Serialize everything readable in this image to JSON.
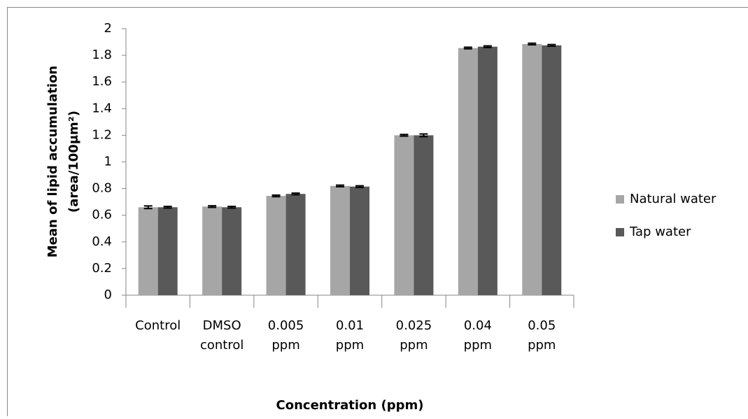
{
  "chart_data": {
    "type": "bar",
    "x_label": "Concentration (ppm)",
    "y_label": [
      "Mean of lipid accumulation",
      "(area/100μm²)"
    ],
    "categories": [
      [
        "Control"
      ],
      [
        "DMSO",
        "control"
      ],
      [
        "0.005",
        "ppm"
      ],
      [
        "0.01",
        "ppm"
      ],
      [
        "0.025",
        "ppm"
      ],
      [
        "0.04",
        "ppm"
      ],
      [
        "0.05",
        "ppm"
      ]
    ],
    "series": [
      {
        "name": "Natural water",
        "color": "#a6a6a6",
        "values": [
          0.66,
          0.665,
          0.745,
          0.82,
          1.2,
          1.855,
          1.885
        ],
        "errors": [
          0.01,
          0.006,
          0.006,
          0.006,
          0.006,
          0.006,
          0.006
        ]
      },
      {
        "name": "Tap water",
        "color": "#595959",
        "values": [
          0.66,
          0.66,
          0.76,
          0.815,
          1.2,
          1.865,
          1.875
        ],
        "errors": [
          0.006,
          0.006,
          0.006,
          0.006,
          0.01,
          0.006,
          0.006
        ]
      }
    ],
    "ylim": [
      0,
      2
    ],
    "yticks": [
      0,
      0.2,
      0.4,
      0.6,
      0.8,
      1,
      1.2,
      1.4,
      1.6,
      1.8,
      2
    ],
    "grid": false,
    "legend": "right"
  }
}
